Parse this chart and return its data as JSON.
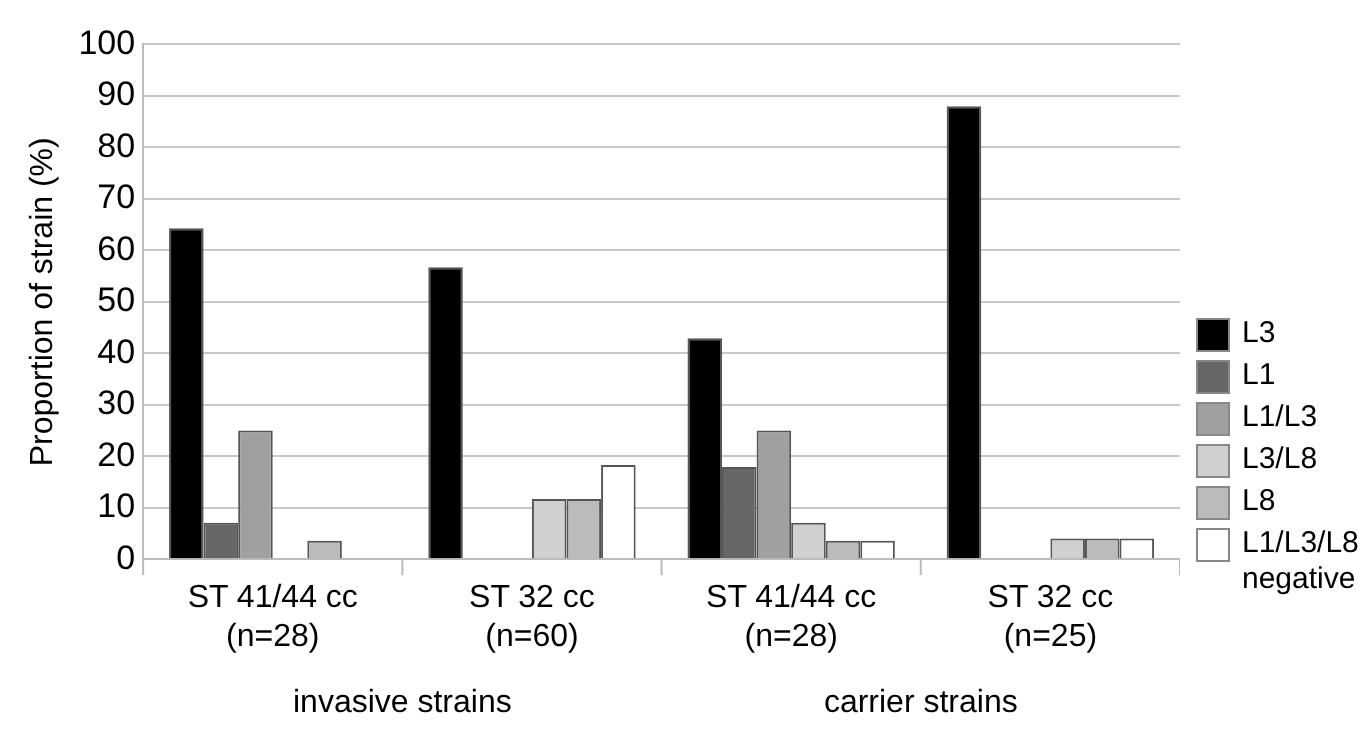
{
  "chart_data": {
    "type": "bar",
    "ylabel": "Proportion of strain (%)",
    "categories": [
      "ST 41/44 cc (n=28)",
      "ST 32 cc (n=60)",
      "ST 41/44 cc (n=28)",
      "ST 32 cc (n=25)"
    ],
    "series": [
      {
        "name": "L3",
        "color": "#000000",
        "values": [
          64.3,
          56.7,
          42.9,
          88
        ]
      },
      {
        "name": "L1",
        "color": "#666666",
        "values": [
          7.1,
          0,
          17.9,
          0
        ]
      },
      {
        "name": "L1/L3",
        "color": "#a0a0a0",
        "values": [
          25,
          0,
          25,
          0
        ]
      },
      {
        "name": "L3/L8",
        "color": "#d0d0d0",
        "values": [
          0,
          11.7,
          7.1,
          4
        ]
      },
      {
        "name": "L8",
        "color": "#bbbbbb",
        "values": [
          3.6,
          11.7,
          3.6,
          4
        ]
      },
      {
        "name": "L1/L3/L8 negative",
        "color": "#ffffff",
        "values": [
          0,
          18.3,
          3.6,
          4
        ]
      }
    ],
    "ylim": [
      0,
      100
    ],
    "yticks": [
      0,
      10,
      20,
      30,
      40,
      50,
      60,
      70,
      80,
      90,
      100
    ],
    "grid": "y",
    "legend": "right",
    "annotations": [
      "invasive strains",
      "carrier strains"
    ]
  }
}
